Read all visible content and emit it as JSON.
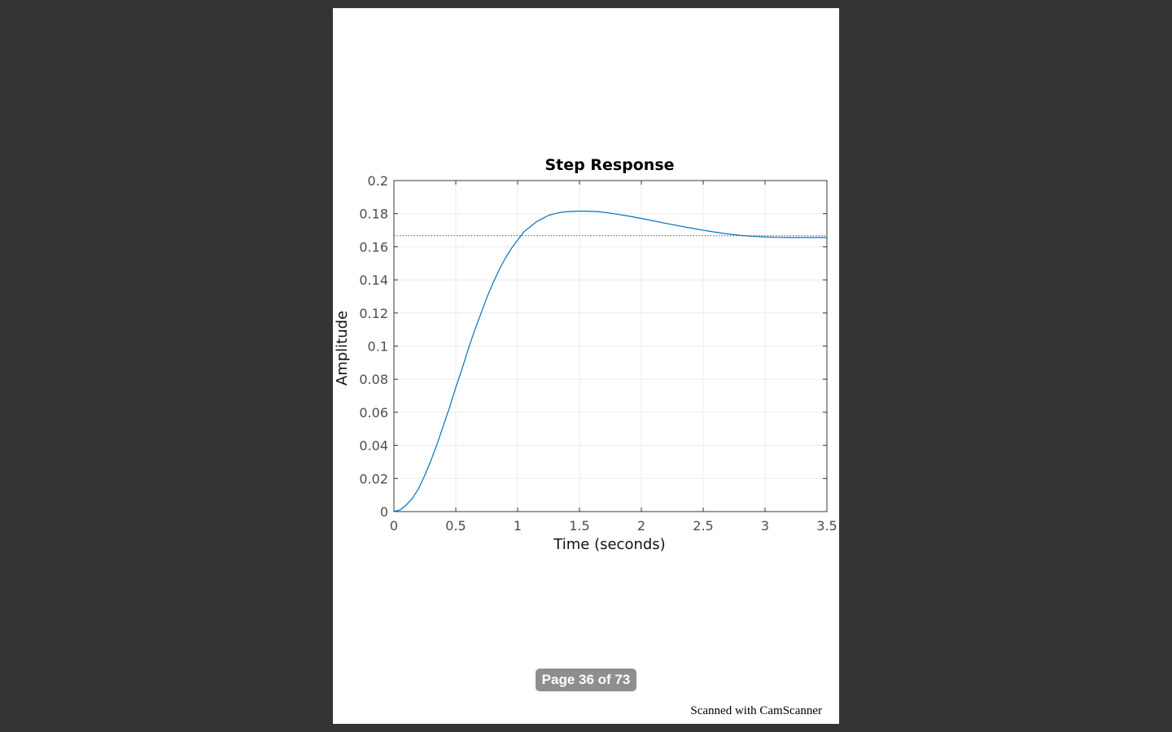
{
  "viewer": {
    "page_indicator": "Page 36 of 73",
    "background_color": "#333333",
    "page_color": "#ffffff"
  },
  "document": {
    "footer_watermark": "Scanned with CamScanner"
  },
  "chart_data": {
    "type": "line",
    "title": "Step Response",
    "xlabel": "Time (seconds)",
    "ylabel": "Amplitude",
    "xlim": [
      0,
      3.5
    ],
    "ylim": [
      0,
      0.2
    ],
    "x_ticks": [
      "0",
      "0.5",
      "1",
      "1.5",
      "2",
      "2.5",
      "3",
      "3.5"
    ],
    "y_ticks": [
      "0",
      "0.02",
      "0.04",
      "0.06",
      "0.08",
      "0.1",
      "0.12",
      "0.14",
      "0.16",
      "0.18",
      "0.2"
    ],
    "grid": true,
    "legend": "none",
    "line_color": "#0072bd",
    "series": [
      {
        "x": [
          0,
          0.05,
          0.1,
          0.15,
          0.2,
          0.25,
          0.3,
          0.35,
          0.4,
          0.45,
          0.5,
          0.55,
          0.6,
          0.65,
          0.7,
          0.75,
          0.8,
          0.85,
          0.9,
          0.95,
          1.0,
          1.05,
          1.1,
          1.15,
          1.2,
          1.25,
          1.3,
          1.35,
          1.4,
          1.45,
          1.5,
          1.55,
          1.6,
          1.65,
          1.7,
          1.75,
          1.8,
          1.9,
          2.0,
          2.1,
          2.2,
          2.3,
          2.4,
          2.5,
          2.6,
          2.7,
          2.8,
          2.9,
          3.0,
          3.1,
          3.2,
          3.3,
          3.4,
          3.5
        ],
        "y": [
          0,
          0.001,
          0.004,
          0.008,
          0.014,
          0.022,
          0.031,
          0.041,
          0.052,
          0.063,
          0.075,
          0.086,
          0.098,
          0.109,
          0.119,
          0.129,
          0.138,
          0.146,
          0.153,
          0.159,
          0.164,
          0.169,
          0.172,
          0.175,
          0.177,
          0.179,
          0.18,
          0.1808,
          0.1812,
          0.1814,
          0.1815,
          0.1815,
          0.1814,
          0.1812,
          0.1808,
          0.1803,
          0.1797,
          0.1785,
          0.1771,
          0.1756,
          0.1741,
          0.1727,
          0.1713,
          0.17,
          0.1688,
          0.1677,
          0.1669,
          0.1663,
          0.1659,
          0.1657,
          0.1656,
          0.1656,
          0.1656,
          0.1656
        ]
      }
    ],
    "reference_line": {
      "y": 0.1667,
      "style": "dotted",
      "color": "#555555"
    }
  }
}
